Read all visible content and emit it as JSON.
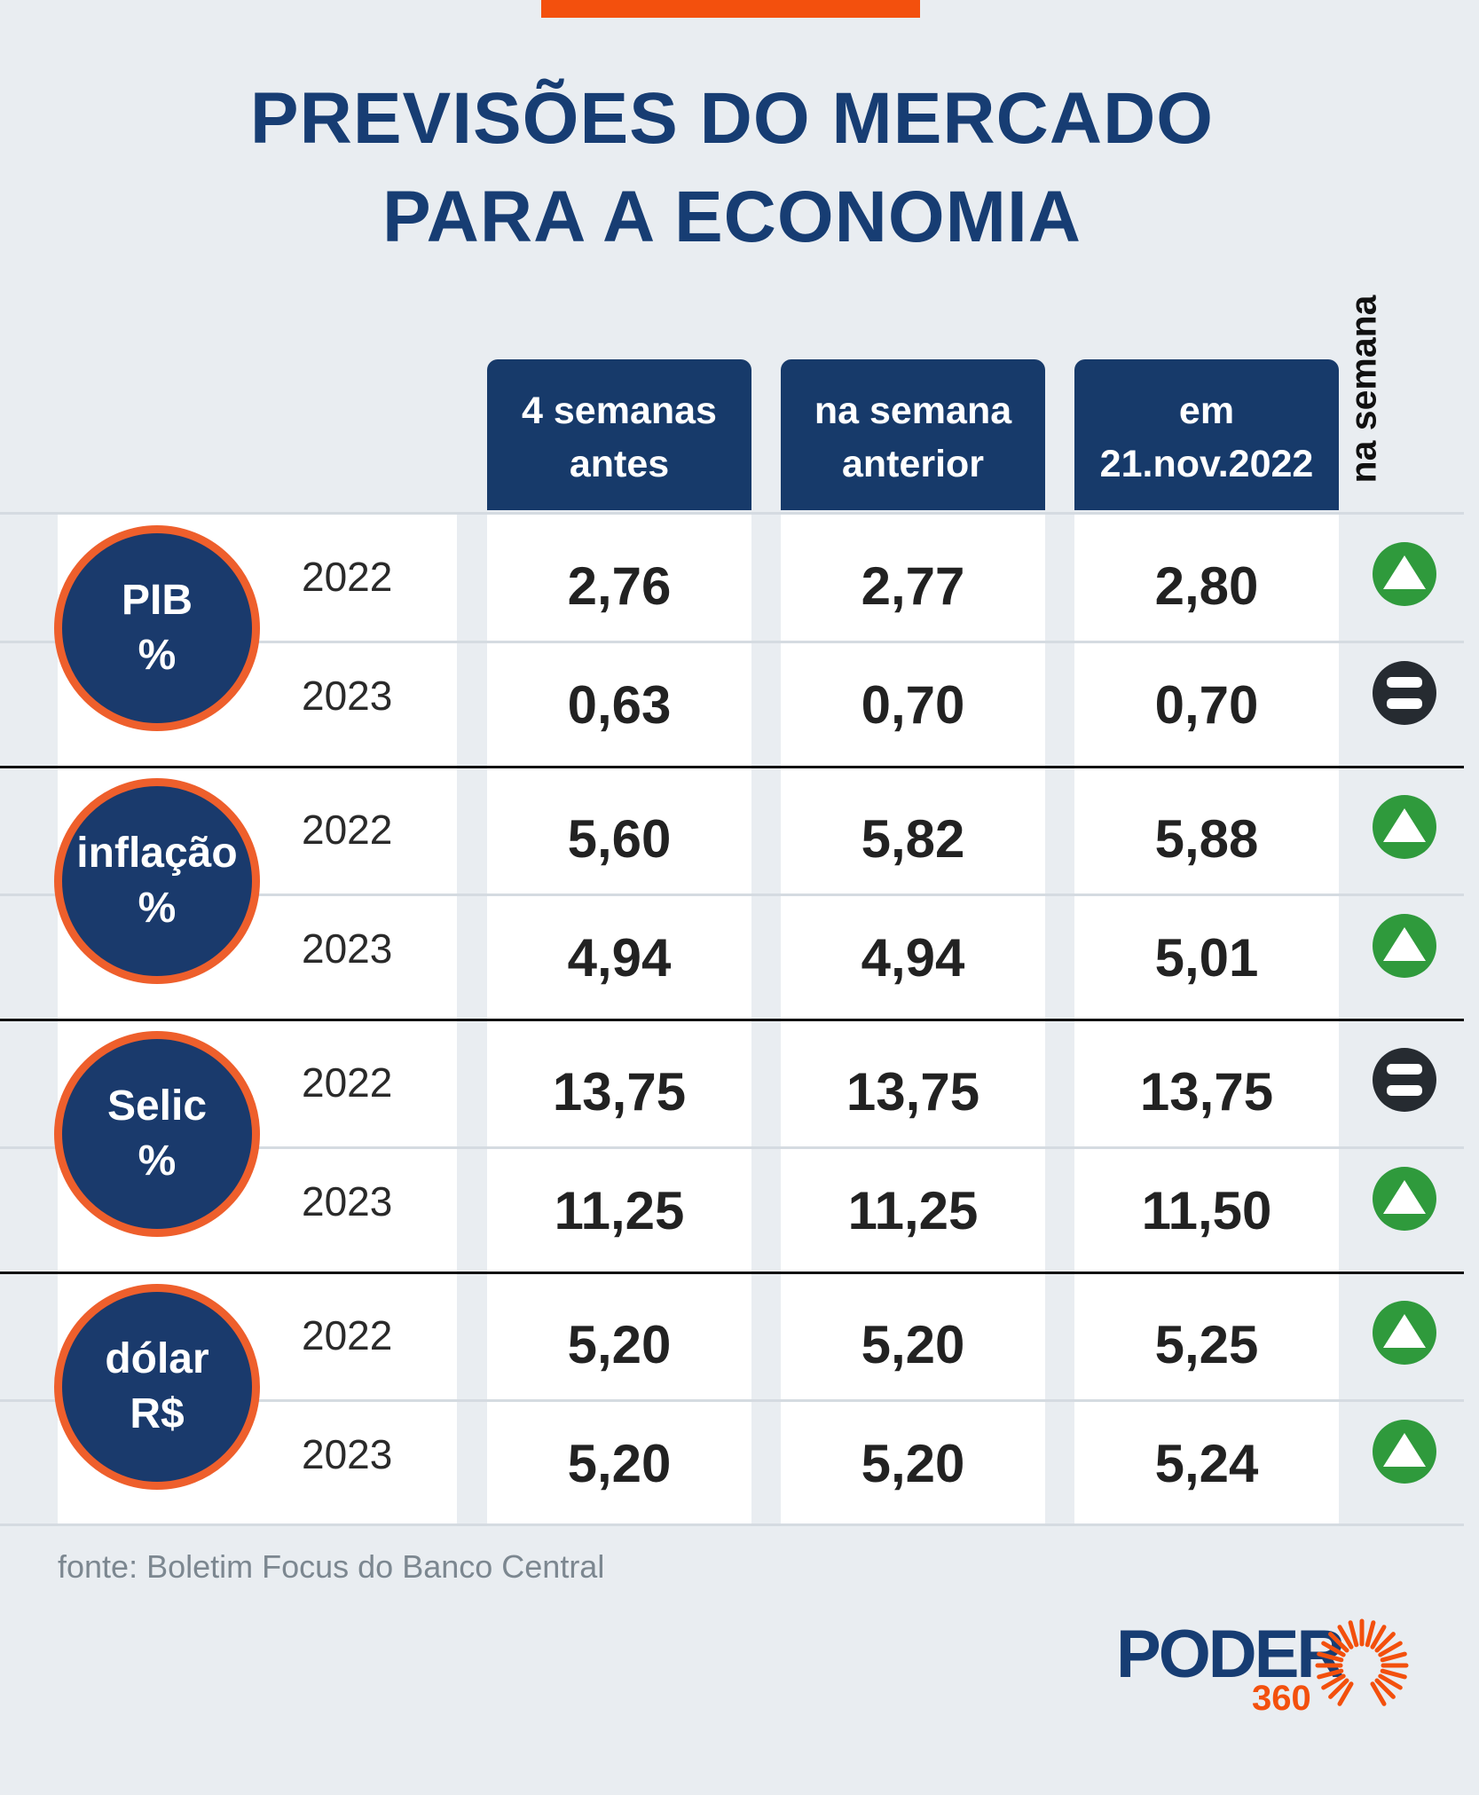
{
  "title_lines": [
    "PREVISÕES DO MERCADO",
    "PARA A ECONOMIA"
  ],
  "columns": [
    "4 semanas antes",
    "na semana anterior",
    "em 21.nov.2022"
  ],
  "trend_header": "na semana",
  "source": "fonte: Boletim Focus do Banco Central",
  "logo": {
    "text": "PODER",
    "number": "360"
  },
  "colors": {
    "navy": "#173a6a",
    "orange": "#ee5f2c",
    "up": "#2f9a3c",
    "equal": "#262b31"
  },
  "indicators": [
    {
      "name": "PIB",
      "unit": "%",
      "rows": [
        {
          "year": "2022",
          "values": [
            "2,76",
            "2,77",
            "2,80"
          ],
          "trend": "up"
        },
        {
          "year": "2023",
          "values": [
            "0,63",
            "0,70",
            "0,70"
          ],
          "trend": "equal"
        }
      ]
    },
    {
      "name": "inflação",
      "unit": "%",
      "rows": [
        {
          "year": "2022",
          "values": [
            "5,60",
            "5,82",
            "5,88"
          ],
          "trend": "up"
        },
        {
          "year": "2023",
          "values": [
            "4,94",
            "4,94",
            "5,01"
          ],
          "trend": "up"
        }
      ]
    },
    {
      "name": "Selic",
      "unit": "%",
      "rows": [
        {
          "year": "2022",
          "values": [
            "13,75",
            "13,75",
            "13,75"
          ],
          "trend": "equal"
        },
        {
          "year": "2023",
          "values": [
            "11,25",
            "11,25",
            "11,50"
          ],
          "trend": "up"
        }
      ]
    },
    {
      "name": "dólar",
      "unit": "R$",
      "rows": [
        {
          "year": "2022",
          "values": [
            "5,20",
            "5,20",
            "5,25"
          ],
          "trend": "up"
        },
        {
          "year": "2023",
          "values": [
            "5,20",
            "5,20",
            "5,24"
          ],
          "trend": "up"
        }
      ]
    }
  ],
  "chart_data": {
    "type": "table",
    "title": "PREVISÕES DO MERCADO PARA A ECONOMIA",
    "columns": [
      "4 semanas antes",
      "na semana anterior",
      "em 21.nov.2022",
      "na semana"
    ],
    "rows": [
      [
        "PIB %",
        "2022",
        2.76,
        2.77,
        2.8,
        "up"
      ],
      [
        "PIB %",
        "2023",
        0.63,
        0.7,
        0.7,
        "equal"
      ],
      [
        "inflação %",
        "2022",
        5.6,
        5.82,
        5.88,
        "up"
      ],
      [
        "inflação %",
        "2023",
        4.94,
        4.94,
        5.01,
        "up"
      ],
      [
        "Selic %",
        "2022",
        13.75,
        13.75,
        13.75,
        "equal"
      ],
      [
        "Selic %",
        "2023",
        11.25,
        11.25,
        11.5,
        "up"
      ],
      [
        "dólar R$",
        "2022",
        5.2,
        5.2,
        5.25,
        "up"
      ],
      [
        "dólar R$",
        "2023",
        5.2,
        5.2,
        5.24,
        "up"
      ]
    ]
  }
}
